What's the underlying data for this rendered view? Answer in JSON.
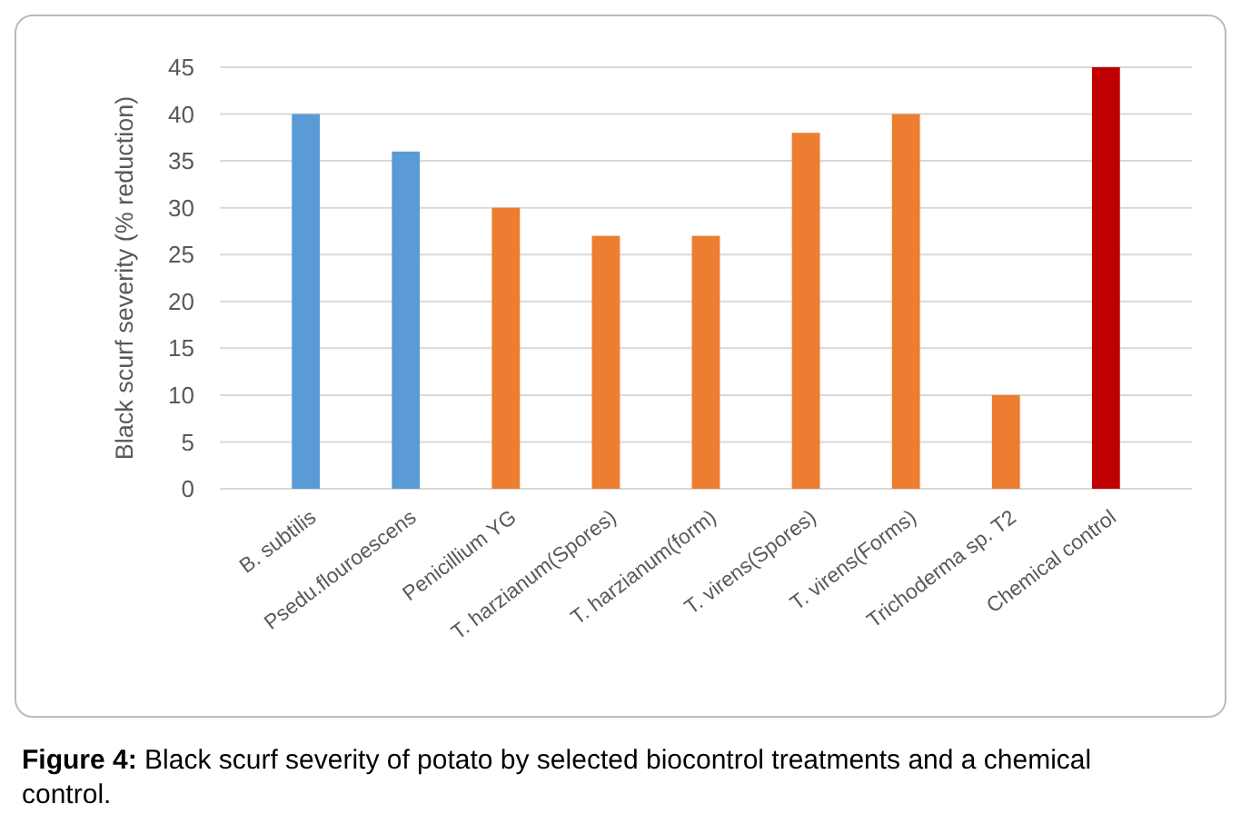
{
  "chart_data": {
    "type": "bar",
    "ylabel": "Black scurf severity (% reduction)",
    "categories": [
      "B. subtilis",
      "Psedu.flouroescens",
      "Penicillium YG",
      "T. harzianum(Spores)",
      "T. harzianum(form)",
      "T. virens(Spores)",
      "T. virens(Forms)",
      "Trichoderma sp. T2",
      "Chemical control"
    ],
    "values": [
      40,
      36,
      30,
      27,
      27,
      38,
      40,
      10,
      45
    ],
    "colors": [
      "#5b9bd5",
      "#5b9bd5",
      "#ed7d31",
      "#ed7d31",
      "#ed7d31",
      "#ed7d31",
      "#ed7d31",
      "#ed7d31",
      "#c00000"
    ],
    "ylim": [
      0,
      45
    ],
    "yticks": [
      0,
      5,
      10,
      15,
      20,
      25,
      30,
      35,
      40,
      45
    ],
    "grid": "y",
    "annotations": [
      "Figure 4: Black scurf severity of potato by selected biocontrol treatments and a chemical control."
    ]
  }
}
